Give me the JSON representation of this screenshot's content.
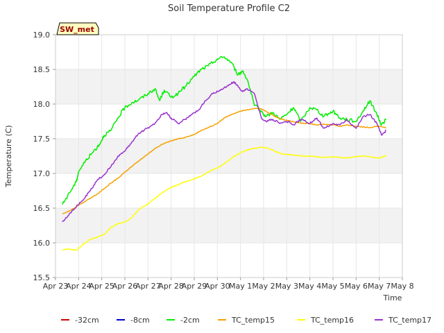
{
  "chart_data": {
    "type": "line",
    "title": "Soil Temperature Profile C2",
    "xlabel": "Time",
    "ylabel": "Temperature (C)",
    "badge": "SW_met",
    "xlim": [
      0,
      15
    ],
    "ylim": [
      15.5,
      19.0
    ],
    "x_ticks": [
      0,
      1,
      2,
      3,
      4,
      5,
      6,
      7,
      8,
      9,
      10,
      11,
      12,
      13,
      14,
      15
    ],
    "x_tick_labels": [
      "Apr 23",
      "Apr 24",
      "Apr 25",
      "Apr 26",
      "Apr 27",
      "Apr 28",
      "Apr 29",
      "Apr 30",
      "May 1",
      "May 2",
      "May 3",
      "May 4",
      "May 5",
      "May 6",
      "May 7",
      "May 8"
    ],
    "y_ticks": [
      15.5,
      16.0,
      16.5,
      17.0,
      17.5,
      18.0,
      18.5,
      19.0
    ],
    "y_tick_labels": [
      "15.5",
      "16.0",
      "16.5",
      "17.0",
      "17.5",
      "18.0",
      "18.5",
      "19.0"
    ],
    "x_unit": "days since Apr 23",
    "series": [
      {
        "name": "-32cm",
        "color": "#cc0000",
        "x": [],
        "y": []
      },
      {
        "name": "-8cm",
        "color": "#0000cc",
        "x": [],
        "y": []
      },
      {
        "name": "-2cm",
        "color": "#00ee00",
        "x": [
          0.3,
          0.6,
          0.9,
          1.0,
          1.3,
          1.6,
          1.9,
          2.1,
          2.4,
          2.7,
          3.0,
          3.3,
          3.6,
          4.0,
          4.3,
          4.5,
          4.7,
          5.0,
          5.3,
          5.6,
          6.0,
          6.3,
          6.6,
          7.0,
          7.3,
          7.6,
          7.9,
          8.1,
          8.3,
          8.6,
          8.9,
          9.1,
          9.4,
          9.7,
          10.0,
          10.3,
          10.6,
          11.0,
          11.3,
          11.6,
          12.0,
          12.3,
          12.6,
          13.0,
          13.3,
          13.6,
          13.9,
          14.1,
          14.3
        ],
        "y": [
          16.55,
          16.72,
          16.88,
          17.03,
          17.18,
          17.3,
          17.42,
          17.55,
          17.62,
          17.8,
          17.95,
          18.02,
          18.06,
          18.15,
          18.22,
          18.05,
          18.2,
          18.1,
          18.15,
          18.25,
          18.4,
          18.5,
          18.55,
          18.65,
          18.68,
          18.6,
          18.42,
          18.48,
          18.35,
          17.98,
          17.9,
          17.82,
          17.88,
          17.78,
          17.85,
          17.95,
          17.75,
          17.95,
          17.92,
          17.82,
          17.9,
          17.8,
          17.78,
          17.75,
          17.9,
          18.05,
          17.85,
          17.7,
          17.78
        ]
      },
      {
        "name": "TC_temp15",
        "color": "#f5a000",
        "x": [
          0.3,
          0.6,
          0.9,
          1.2,
          1.5,
          1.8,
          2.1,
          2.4,
          2.7,
          3.0,
          3.3,
          3.6,
          4.0,
          4.3,
          4.6,
          5.0,
          5.3,
          5.6,
          6.0,
          6.3,
          6.6,
          7.0,
          7.3,
          7.6,
          8.0,
          8.3,
          8.6,
          8.9,
          9.2,
          9.5,
          9.8,
          10.1,
          10.4,
          10.7,
          11.0,
          11.3,
          11.6,
          12.0,
          12.3,
          12.6,
          13.0,
          13.3,
          13.6,
          14.0,
          14.3
        ],
        "y": [
          16.42,
          16.46,
          16.52,
          16.58,
          16.64,
          16.7,
          16.78,
          16.86,
          16.93,
          17.02,
          17.1,
          17.18,
          17.28,
          17.36,
          17.42,
          17.47,
          17.5,
          17.52,
          17.56,
          17.62,
          17.66,
          17.72,
          17.8,
          17.85,
          17.9,
          17.92,
          17.94,
          17.93,
          17.88,
          17.82,
          17.78,
          17.76,
          17.74,
          17.72,
          17.72,
          17.7,
          17.71,
          17.7,
          17.68,
          17.7,
          17.68,
          17.67,
          17.66,
          17.68,
          17.66
        ]
      },
      {
        "name": "TC_temp16",
        "color": "#ffff00",
        "x": [
          0.3,
          0.6,
          0.9,
          1.2,
          1.5,
          1.8,
          2.1,
          2.4,
          2.7,
          3.0,
          3.3,
          3.6,
          4.0,
          4.3,
          4.6,
          5.0,
          5.3,
          5.6,
          6.0,
          6.3,
          6.6,
          7.0,
          7.3,
          7.6,
          8.0,
          8.3,
          8.6,
          8.9,
          9.2,
          9.5,
          9.8,
          10.1,
          10.4,
          10.7,
          11.0,
          11.3,
          11.6,
          12.0,
          12.3,
          12.6,
          13.0,
          13.3,
          13.6,
          14.0,
          14.3
        ],
        "y": [
          15.9,
          15.91,
          15.89,
          15.98,
          16.05,
          16.08,
          16.12,
          16.22,
          16.28,
          16.3,
          16.36,
          16.48,
          16.56,
          16.64,
          16.72,
          16.8,
          16.84,
          16.88,
          16.92,
          16.96,
          17.02,
          17.08,
          17.14,
          17.22,
          17.3,
          17.34,
          17.36,
          17.38,
          17.36,
          17.32,
          17.28,
          17.27,
          17.26,
          17.25,
          17.25,
          17.24,
          17.23,
          17.24,
          17.23,
          17.22,
          17.24,
          17.25,
          17.24,
          17.22,
          17.26
        ]
      },
      {
        "name": "TC_temp17",
        "color": "#9933cc",
        "x": [
          0.3,
          0.6,
          0.9,
          1.2,
          1.5,
          1.8,
          2.1,
          2.4,
          2.7,
          3.0,
          3.3,
          3.6,
          4.0,
          4.3,
          4.6,
          4.8,
          5.0,
          5.3,
          5.6,
          5.9,
          6.2,
          6.5,
          6.8,
          7.1,
          7.4,
          7.7,
          7.9,
          8.1,
          8.3,
          8.6,
          8.9,
          9.1,
          9.4,
          9.7,
          10.0,
          10.3,
          10.6,
          11.0,
          11.3,
          11.6,
          12.0,
          12.3,
          12.6,
          13.0,
          13.3,
          13.6,
          13.9,
          14.1,
          14.3
        ],
        "y": [
          16.3,
          16.42,
          16.52,
          16.62,
          16.75,
          16.9,
          16.98,
          17.1,
          17.25,
          17.32,
          17.45,
          17.58,
          17.66,
          17.72,
          17.85,
          17.88,
          17.8,
          17.72,
          17.78,
          17.85,
          17.92,
          18.05,
          18.15,
          18.2,
          18.25,
          18.32,
          18.25,
          18.18,
          18.22,
          18.15,
          17.8,
          17.75,
          17.78,
          17.72,
          17.75,
          17.7,
          17.78,
          17.72,
          17.8,
          17.65,
          17.72,
          17.7,
          17.78,
          17.65,
          17.82,
          17.85,
          17.72,
          17.55,
          17.62
        ]
      }
    ]
  }
}
